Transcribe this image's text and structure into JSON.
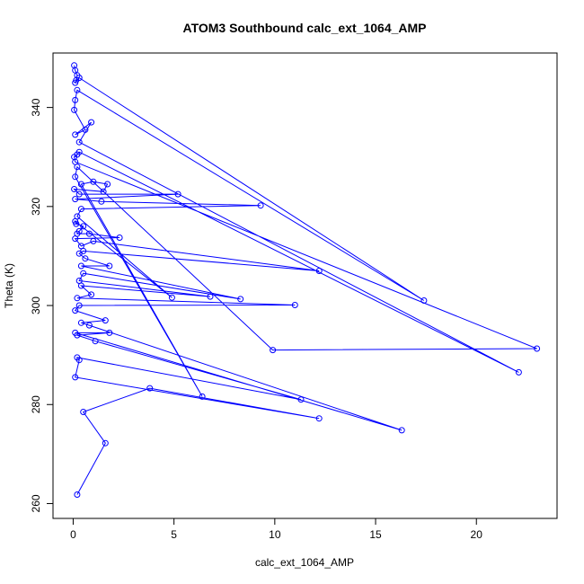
{
  "chart_data": {
    "type": "line",
    "title": "ATOM3 Southbound calc_ext_1064_AMP",
    "xlabel": "calc_ext_1064_AMP",
    "ylabel": "Theta (K)",
    "xlim": [
      -1,
      24
    ],
    "ylim": [
      257,
      351
    ],
    "xticks": [
      0,
      5,
      10,
      15,
      20
    ],
    "yticks": [
      260,
      280,
      300,
      320,
      340
    ],
    "grid": false,
    "legend": "none",
    "color": "#0000ff",
    "marker": "open-circle",
    "series": [
      {
        "points": [
          [
            0.05,
            348.5
          ],
          [
            0.1,
            347.5
          ],
          [
            0.2,
            346.5
          ],
          [
            0.15,
            345.5
          ],
          [
            0.1,
            345.0
          ],
          [
            0.3,
            346.0
          ],
          [
            17.4,
            301.0
          ],
          [
            0.2,
            343.5
          ],
          [
            0.1,
            341.5
          ],
          [
            0.05,
            339.5
          ],
          [
            0.6,
            335.5
          ],
          [
            0.1,
            334.5
          ],
          [
            0.9,
            337.0
          ],
          [
            0.3,
            333.0
          ],
          [
            22.1,
            286.5
          ],
          [
            0.3,
            331.0
          ],
          [
            0.2,
            330.5
          ],
          [
            0.05,
            330.0
          ],
          [
            0.1,
            329.0
          ],
          [
            23.0,
            291.3
          ],
          [
            9.9,
            291.0
          ],
          [
            0.2,
            328.0
          ],
          [
            0.1,
            326.0
          ],
          [
            6.4,
            281.6
          ],
          [
            0.4,
            324.5
          ],
          [
            1.0,
            325.0
          ],
          [
            1.7,
            324.5
          ],
          [
            1.5,
            323.0
          ],
          [
            0.05,
            323.5
          ],
          [
            0.3,
            322.5
          ],
          [
            5.2,
            322.5
          ],
          [
            0.1,
            321.5
          ],
          [
            1.4,
            321.0
          ],
          [
            9.3,
            320.2
          ],
          [
            0.4,
            319.5
          ],
          [
            0.2,
            318.0
          ],
          [
            4.9,
            301.6
          ],
          [
            0.1,
            317.0
          ],
          [
            0.15,
            316.5
          ],
          [
            0.5,
            316.0
          ],
          [
            0.3,
            315.0
          ],
          [
            0.2,
            314.5
          ],
          [
            0.8,
            314.5
          ],
          [
            2.3,
            313.7
          ],
          [
            0.1,
            313.5
          ],
          [
            0.4,
            312.0
          ],
          [
            1.0,
            313.0
          ],
          [
            12.2,
            307.0
          ],
          [
            0.5,
            311.0
          ],
          [
            0.3,
            310.5
          ],
          [
            0.6,
            309.5
          ],
          [
            1.8,
            308.0
          ],
          [
            0.4,
            308.0
          ],
          [
            8.3,
            301.3
          ],
          [
            0.5,
            306.5
          ],
          [
            0.3,
            305.0
          ],
          [
            6.8,
            301.8
          ],
          [
            0.4,
            304.0
          ],
          [
            0.9,
            302.2
          ],
          [
            0.2,
            301.5
          ],
          [
            11.0,
            300.1
          ],
          [
            0.3,
            300.0
          ],
          [
            0.1,
            299.0
          ],
          [
            1.6,
            297.0
          ],
          [
            0.4,
            296.5
          ],
          [
            0.8,
            296.0
          ],
          [
            16.3,
            274.8
          ],
          [
            0.1,
            294.5
          ],
          [
            1.8,
            294.5
          ],
          [
            0.2,
            294.0
          ],
          [
            1.1,
            292.8
          ],
          [
            11.3,
            281.0
          ],
          [
            0.2,
            289.5
          ],
          [
            0.3,
            289.0
          ],
          [
            0.1,
            285.5
          ],
          [
            12.2,
            277.2
          ],
          [
            3.8,
            283.3
          ],
          [
            0.5,
            278.5
          ],
          [
            1.6,
            272.2
          ],
          [
            0.2,
            261.8
          ]
        ]
      }
    ]
  }
}
